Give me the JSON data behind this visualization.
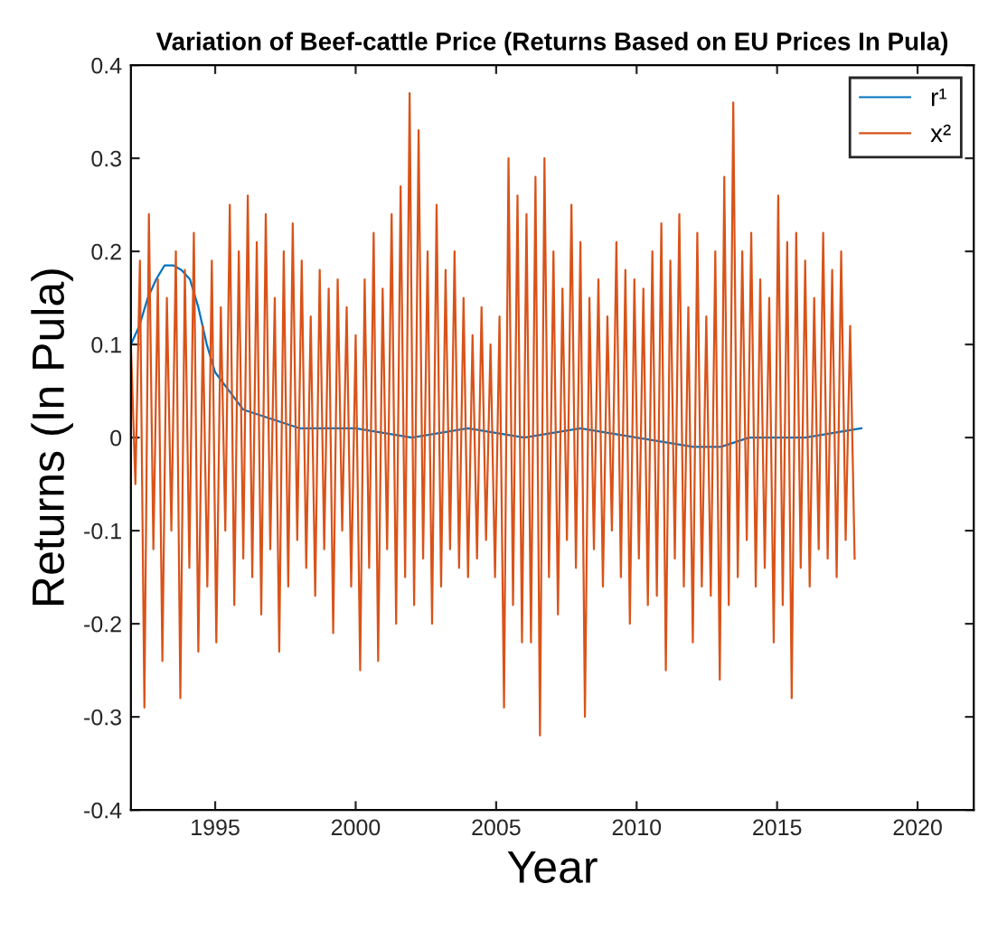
{
  "chart_data": {
    "type": "line",
    "title": "Variation of Beef-cattle Price (Returns Based on EU Prices In Pula)",
    "xlabel": "Year",
    "ylabel": "Returns (In Pula)",
    "xlim": [
      1992,
      2022
    ],
    "xticks": [
      1995,
      2000,
      2005,
      2010,
      2015,
      2020
    ],
    "ylim": [
      -0.4,
      0.4
    ],
    "yticks": [
      -0.4,
      -0.3,
      -0.2,
      -0.1,
      0,
      0.1,
      0.2,
      0.3,
      0.4
    ],
    "grid": false,
    "legend": "top right",
    "series": [
      {
        "name": "r¹",
        "color": "#0072bd",
        "x": [
          1992,
          1992.3,
          1992.6,
          1992.9,
          1993.2,
          1993.5,
          1993.8,
          1994.1,
          1994.4,
          1994.7,
          1995,
          1995.5,
          1996,
          1997,
          1998,
          1999,
          2000,
          2002,
          2004,
          2006,
          2008,
          2010,
          2012,
          2013,
          2014,
          2016,
          2018
        ],
        "values": [
          0.1,
          0.12,
          0.15,
          0.17,
          0.185,
          0.185,
          0.18,
          0.17,
          0.14,
          0.1,
          0.07,
          0.05,
          0.03,
          0.02,
          0.01,
          0.01,
          0.01,
          0.0,
          0.01,
          0.0,
          0.01,
          0.0,
          -0.01,
          -0.01,
          0.0,
          0.0,
          0.01
        ]
      },
      {
        "name": "x²",
        "color": "#d95319",
        "x": [
          1992,
          1992.16,
          1992.32,
          1992.48,
          1992.64,
          1992.8,
          1992.96,
          1993.12,
          1993.28,
          1993.44,
          1993.6,
          1993.76,
          1993.92,
          1994.08,
          1994.24,
          1994.4,
          1994.56,
          1994.72,
          1994.88,
          1995.04,
          1995.2,
          1995.36,
          1995.52,
          1995.68,
          1995.84,
          1996,
          1996.16,
          1996.32,
          1996.48,
          1996.64,
          1996.8,
          1996.96,
          1997.12,
          1997.28,
          1997.44,
          1997.6,
          1997.76,
          1997.92,
          1998.08,
          1998.24,
          1998.4,
          1998.56,
          1998.72,
          1998.88,
          1999.04,
          1999.2,
          1999.36,
          1999.52,
          1999.68,
          1999.84,
          2000,
          2000.16,
          2000.32,
          2000.48,
          2000.64,
          2000.8,
          2000.96,
          2001.12,
          2001.28,
          2001.44,
          2001.6,
          2001.76,
          2001.92,
          2002.08,
          2002.24,
          2002.4,
          2002.56,
          2002.72,
          2002.88,
          2003.04,
          2003.2,
          2003.36,
          2003.52,
          2003.68,
          2003.84,
          2004,
          2004.16,
          2004.32,
          2004.48,
          2004.64,
          2004.8,
          2004.96,
          2005.12,
          2005.28,
          2005.44,
          2005.6,
          2005.76,
          2005.92,
          2006.08,
          2006.24,
          2006.4,
          2006.56,
          2006.72,
          2006.88,
          2007.04,
          2007.2,
          2007.36,
          2007.52,
          2007.68,
          2007.84,
          2008,
          2008.16,
          2008.32,
          2008.48,
          2008.64,
          2008.8,
          2008.96,
          2009.12,
          2009.28,
          2009.44,
          2009.6,
          2009.76,
          2009.92,
          2010.08,
          2010.24,
          2010.4,
          2010.56,
          2010.72,
          2010.88,
          2011.04,
          2011.2,
          2011.36,
          2011.52,
          2011.68,
          2011.84,
          2012,
          2012.16,
          2012.32,
          2012.48,
          2012.64,
          2012.8,
          2012.96,
          2013.12,
          2013.28,
          2013.44,
          2013.6,
          2013.76,
          2013.92,
          2014.08,
          2014.24,
          2014.4,
          2014.56,
          2014.72,
          2014.88,
          2015.04,
          2015.2,
          2015.36,
          2015.52,
          2015.68,
          2015.84,
          2016,
          2016.16,
          2016.32,
          2016.48,
          2016.64,
          2016.8,
          2016.96,
          2017.12,
          2017.28,
          2017.44,
          2017.6,
          2017.76
        ],
        "values": [
          0.1,
          -0.05,
          0.19,
          -0.29,
          0.24,
          -0.12,
          0.17,
          -0.24,
          0.15,
          -0.1,
          0.2,
          -0.28,
          0.18,
          -0.14,
          0.22,
          -0.23,
          0.12,
          -0.16,
          0.19,
          -0.22,
          0.14,
          -0.1,
          0.25,
          -0.18,
          0.2,
          -0.13,
          0.26,
          -0.15,
          0.21,
          -0.19,
          0.24,
          -0.12,
          0.15,
          -0.23,
          0.2,
          -0.16,
          0.23,
          -0.11,
          0.19,
          -0.14,
          0.13,
          -0.17,
          0.18,
          -0.12,
          0.16,
          -0.21,
          0.17,
          -0.1,
          0.14,
          -0.16,
          0.11,
          -0.25,
          0.17,
          -0.14,
          0.22,
          -0.24,
          0.16,
          -0.12,
          0.24,
          -0.2,
          0.27,
          -0.15,
          0.37,
          -0.18,
          0.33,
          -0.13,
          0.2,
          -0.2,
          0.25,
          -0.16,
          0.18,
          -0.12,
          0.2,
          -0.14,
          0.15,
          -0.15,
          0.11,
          -0.13,
          0.14,
          -0.11,
          0.1,
          -0.15,
          0.13,
          -0.29,
          0.3,
          -0.18,
          0.26,
          -0.22,
          0.24,
          -0.22,
          0.28,
          -0.32,
          0.3,
          -0.15,
          0.2,
          -0.19,
          0.16,
          -0.11,
          0.25,
          -0.14,
          0.21,
          -0.3,
          0.15,
          -0.12,
          0.17,
          -0.16,
          0.13,
          -0.1,
          0.21,
          -0.15,
          0.18,
          -0.2,
          0.17,
          -0.13,
          0.16,
          -0.18,
          0.2,
          -0.17,
          0.23,
          -0.25,
          0.19,
          -0.13,
          0.24,
          -0.16,
          0.14,
          -0.22,
          0.22,
          -0.16,
          0.13,
          -0.17,
          0.2,
          -0.26,
          0.28,
          -0.18,
          0.36,
          -0.15,
          0.2,
          -0.11,
          0.22,
          -0.16,
          0.17,
          -0.14,
          0.15,
          -0.22,
          0.26,
          -0.18,
          0.21,
          -0.28,
          0.22,
          -0.14,
          0.19,
          -0.16,
          0.15,
          -0.12,
          0.22,
          -0.13,
          0.18,
          -0.15,
          0.2,
          -0.11,
          0.12,
          -0.13
        ]
      }
    ]
  }
}
